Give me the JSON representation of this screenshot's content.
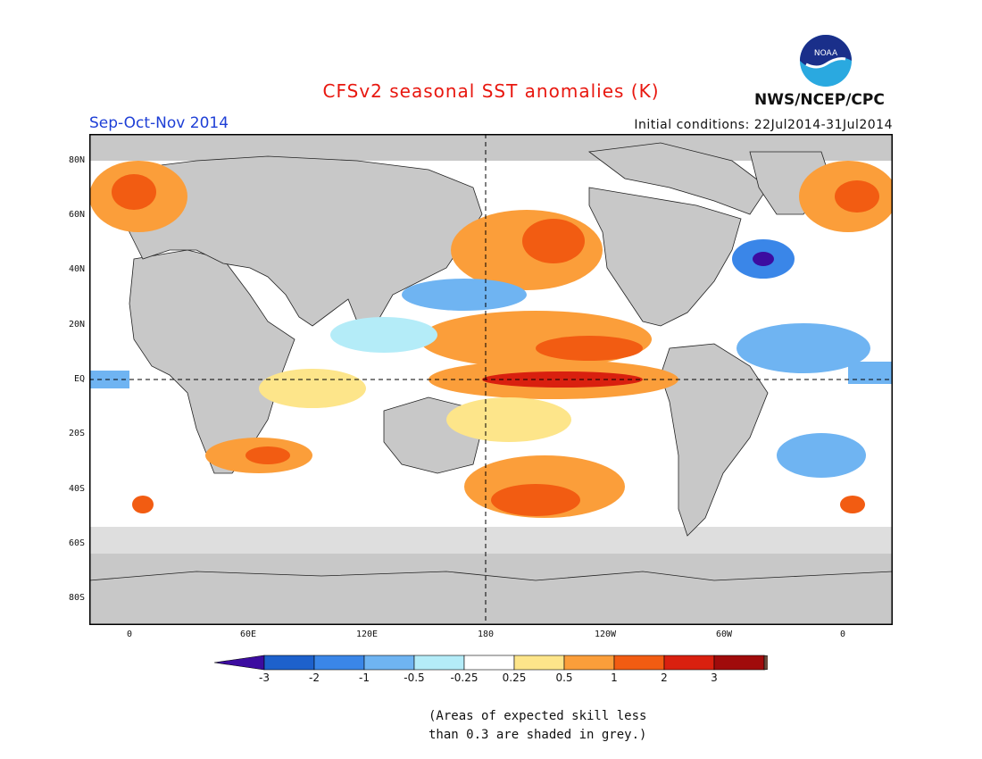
{
  "header": {
    "title": "CFSv2 seasonal SST anomalies (K)",
    "season": "Sep-Oct-Nov 2014",
    "initial_conditions": "Initial conditions: 22Jul2014-31Jul2014",
    "agency": "NWS/NCEP/CPC",
    "logo_text": "NOAA"
  },
  "map": {
    "lat_labels": [
      "80N",
      "60N",
      "40N",
      "20N",
      "EQ",
      "20S",
      "40S",
      "60S",
      "80S"
    ],
    "lon_labels": [
      "0",
      "60E",
      "120E",
      "180",
      "120W",
      "60W",
      "0"
    ],
    "masked_color": "#c8c8c8",
    "land_color": "#c8c8c8"
  },
  "colorbar": {
    "labels": [
      "-3",
      "-2",
      "-1",
      "-0.5",
      "-0.25",
      "0.25",
      "0.5",
      "1",
      "2",
      "3"
    ],
    "colors": [
      "#3c0ca0",
      "#1d61cc",
      "#3a86e8",
      "#6fb4f2",
      "#b4ecf8",
      "#ffffff",
      "#fde58a",
      "#fb9e3a",
      "#f25c12",
      "#d9200f",
      "#a00b0b",
      "#6b4b3d"
    ]
  },
  "note": {
    "line1": "(Areas of expected skill less",
    "line2": "than 0.3 are shaded in grey.)"
  }
}
